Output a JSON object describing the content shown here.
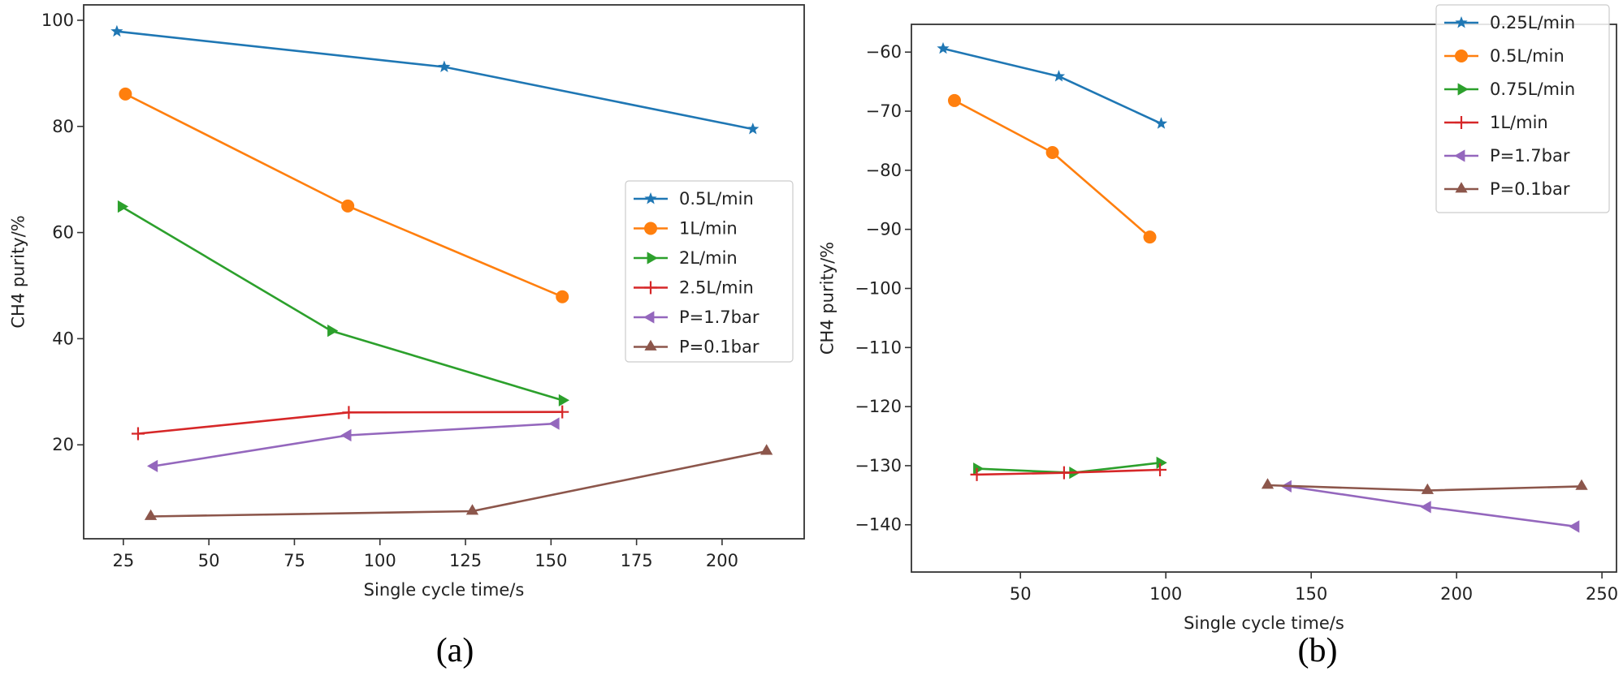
{
  "chart_data": [
    {
      "type": "line",
      "panel_label": "(a)",
      "xlabel": "Single cycle time/s",
      "ylabel": "CH4 purity/%",
      "xlim": [
        13.4,
        224
      ],
      "ylim": [
        2.3,
        102.9
      ],
      "xticks": [
        25,
        50,
        75,
        100,
        125,
        150,
        175,
        200
      ],
      "yticks": [
        20,
        40,
        60,
        80,
        100
      ],
      "grid": false,
      "legend": "center-right",
      "series": [
        {
          "name": "0.5L/min",
          "color": "#1f77b4",
          "marker": "star",
          "x": [
            23.1,
            118.8,
            209
          ],
          "y": [
            97.9,
            91.2,
            79.5
          ]
        },
        {
          "name": "1L/min",
          "color": "#ff7f0e",
          "marker": "circle",
          "x": [
            25.6,
            90.6,
            153.3
          ],
          "y": [
            86.1,
            65.0,
            47.9
          ]
        },
        {
          "name": "2L/min",
          "color": "#2ca02c",
          "marker": "triangle-right",
          "x": [
            24.4,
            85.7,
            153.3
          ],
          "y": [
            64.9,
            41.5,
            28.4
          ]
        },
        {
          "name": "2.5L/min",
          "color": "#d62728",
          "marker": "plus",
          "x": [
            29.3,
            90.9,
            153.3
          ],
          "y": [
            22.1,
            26.1,
            26.2
          ]
        },
        {
          "name": "P=1.7bar",
          "color": "#9467bd",
          "marker": "triangle-left",
          "x": [
            34,
            90.6,
            151.4
          ],
          "y": [
            16.0,
            21.8,
            24.0
          ]
        },
        {
          "name": "P=0.1bar",
          "color": "#8c564b",
          "marker": "triangle-up",
          "x": [
            33,
            127,
            213
          ],
          "y": [
            6.5,
            7.5,
            18.8
          ]
        }
      ]
    },
    {
      "type": "line",
      "panel_label": "(b)",
      "xlabel": "Single cycle time/s",
      "ylabel": "CH4 purity/%",
      "xlim": [
        12.5,
        255
      ],
      "ylim": [
        -148.0,
        -55.3
      ],
      "xticks": [
        50,
        100,
        150,
        200,
        250
      ],
      "yticks": [
        -60,
        -70,
        -80,
        -90,
        -100,
        -110,
        -120,
        -130,
        -140
      ],
      "grid": false,
      "legend": "top-right",
      "series": [
        {
          "name": "0.25L/min",
          "color": "#1f77b4",
          "marker": "star",
          "x": [
            23.4,
            63.2,
            98.4
          ],
          "y": [
            -59.4,
            -64.1,
            -72.1
          ]
        },
        {
          "name": "0.5L/min",
          "color": "#ff7f0e",
          "marker": "circle",
          "x": [
            27.3,
            61.0,
            94.5
          ],
          "y": [
            -68.2,
            -77.0,
            -91.3
          ]
        },
        {
          "name": "0.75L/min",
          "color": "#2ca02c",
          "marker": "triangle-right",
          "x": [
            35,
            68,
            98
          ],
          "y": [
            -130.5,
            -131.2,
            -129.5
          ]
        },
        {
          "name": "1L/min",
          "color": "#d62728",
          "marker": "plus",
          "x": [
            35,
            65,
            98
          ],
          "y": [
            -131.5,
            -131.2,
            -130.7
          ]
        },
        {
          "name": "P=1.7bar",
          "color": "#9467bd",
          "marker": "triangle-left",
          "x": [
            142,
            190,
            241
          ],
          "y": [
            -133.5,
            -137.0,
            -140.3
          ]
        },
        {
          "name": "P=0.1bar",
          "color": "#8c564b",
          "marker": "triangle-up",
          "x": [
            135,
            190,
            243
          ],
          "y": [
            -133.3,
            -134.2,
            -133.5
          ]
        }
      ]
    }
  ]
}
